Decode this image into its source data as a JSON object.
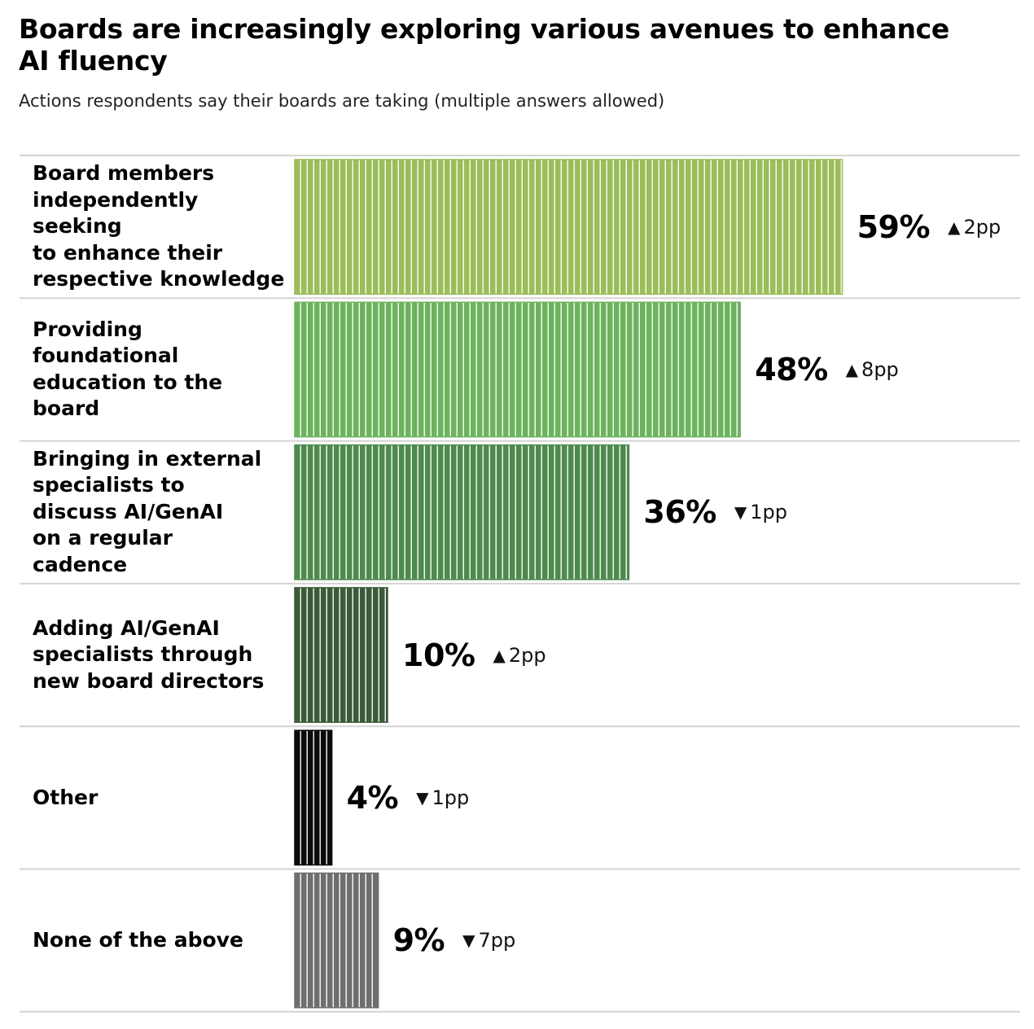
{
  "title": "Boards are increasingly exploring various avenues to enhance AI fluency",
  "subtitle": "Actions respondents say their boards are taking (multiple answers allowed)",
  "chart_data": {
    "type": "bar",
    "orientation": "horizontal",
    "title": "Boards are increasingly exploring various avenues to enhance AI fluency",
    "subtitle": "Actions respondents say their boards are taking (multiple answers allowed)",
    "categories": [
      "Board members independently seeking to enhance their respective knowledge",
      "Providing foundational education to the board",
      "Bringing in external specialists to discuss AI/GenAI on a regular cadence",
      "Adding AI/GenAI specialists through new board directors",
      "Other",
      "None of the above"
    ],
    "values": [
      59,
      48,
      36,
      10,
      4,
      9
    ],
    "units": "%",
    "changes": [
      {
        "direction": "up",
        "text": "2pp"
      },
      {
        "direction": "up",
        "text": "8pp"
      },
      {
        "direction": "down",
        "text": "1pp"
      },
      {
        "direction": "up",
        "text": "2pp"
      },
      {
        "direction": "down",
        "text": "1pp"
      },
      {
        "direction": "down",
        "text": "7pp"
      }
    ],
    "bar_colors": [
      "#9bbd5a",
      "#6db35e",
      "#4e8a4d",
      "#3b5a3a",
      "#0b0b0b",
      "#6e6e70"
    ],
    "grid": false
  }
}
